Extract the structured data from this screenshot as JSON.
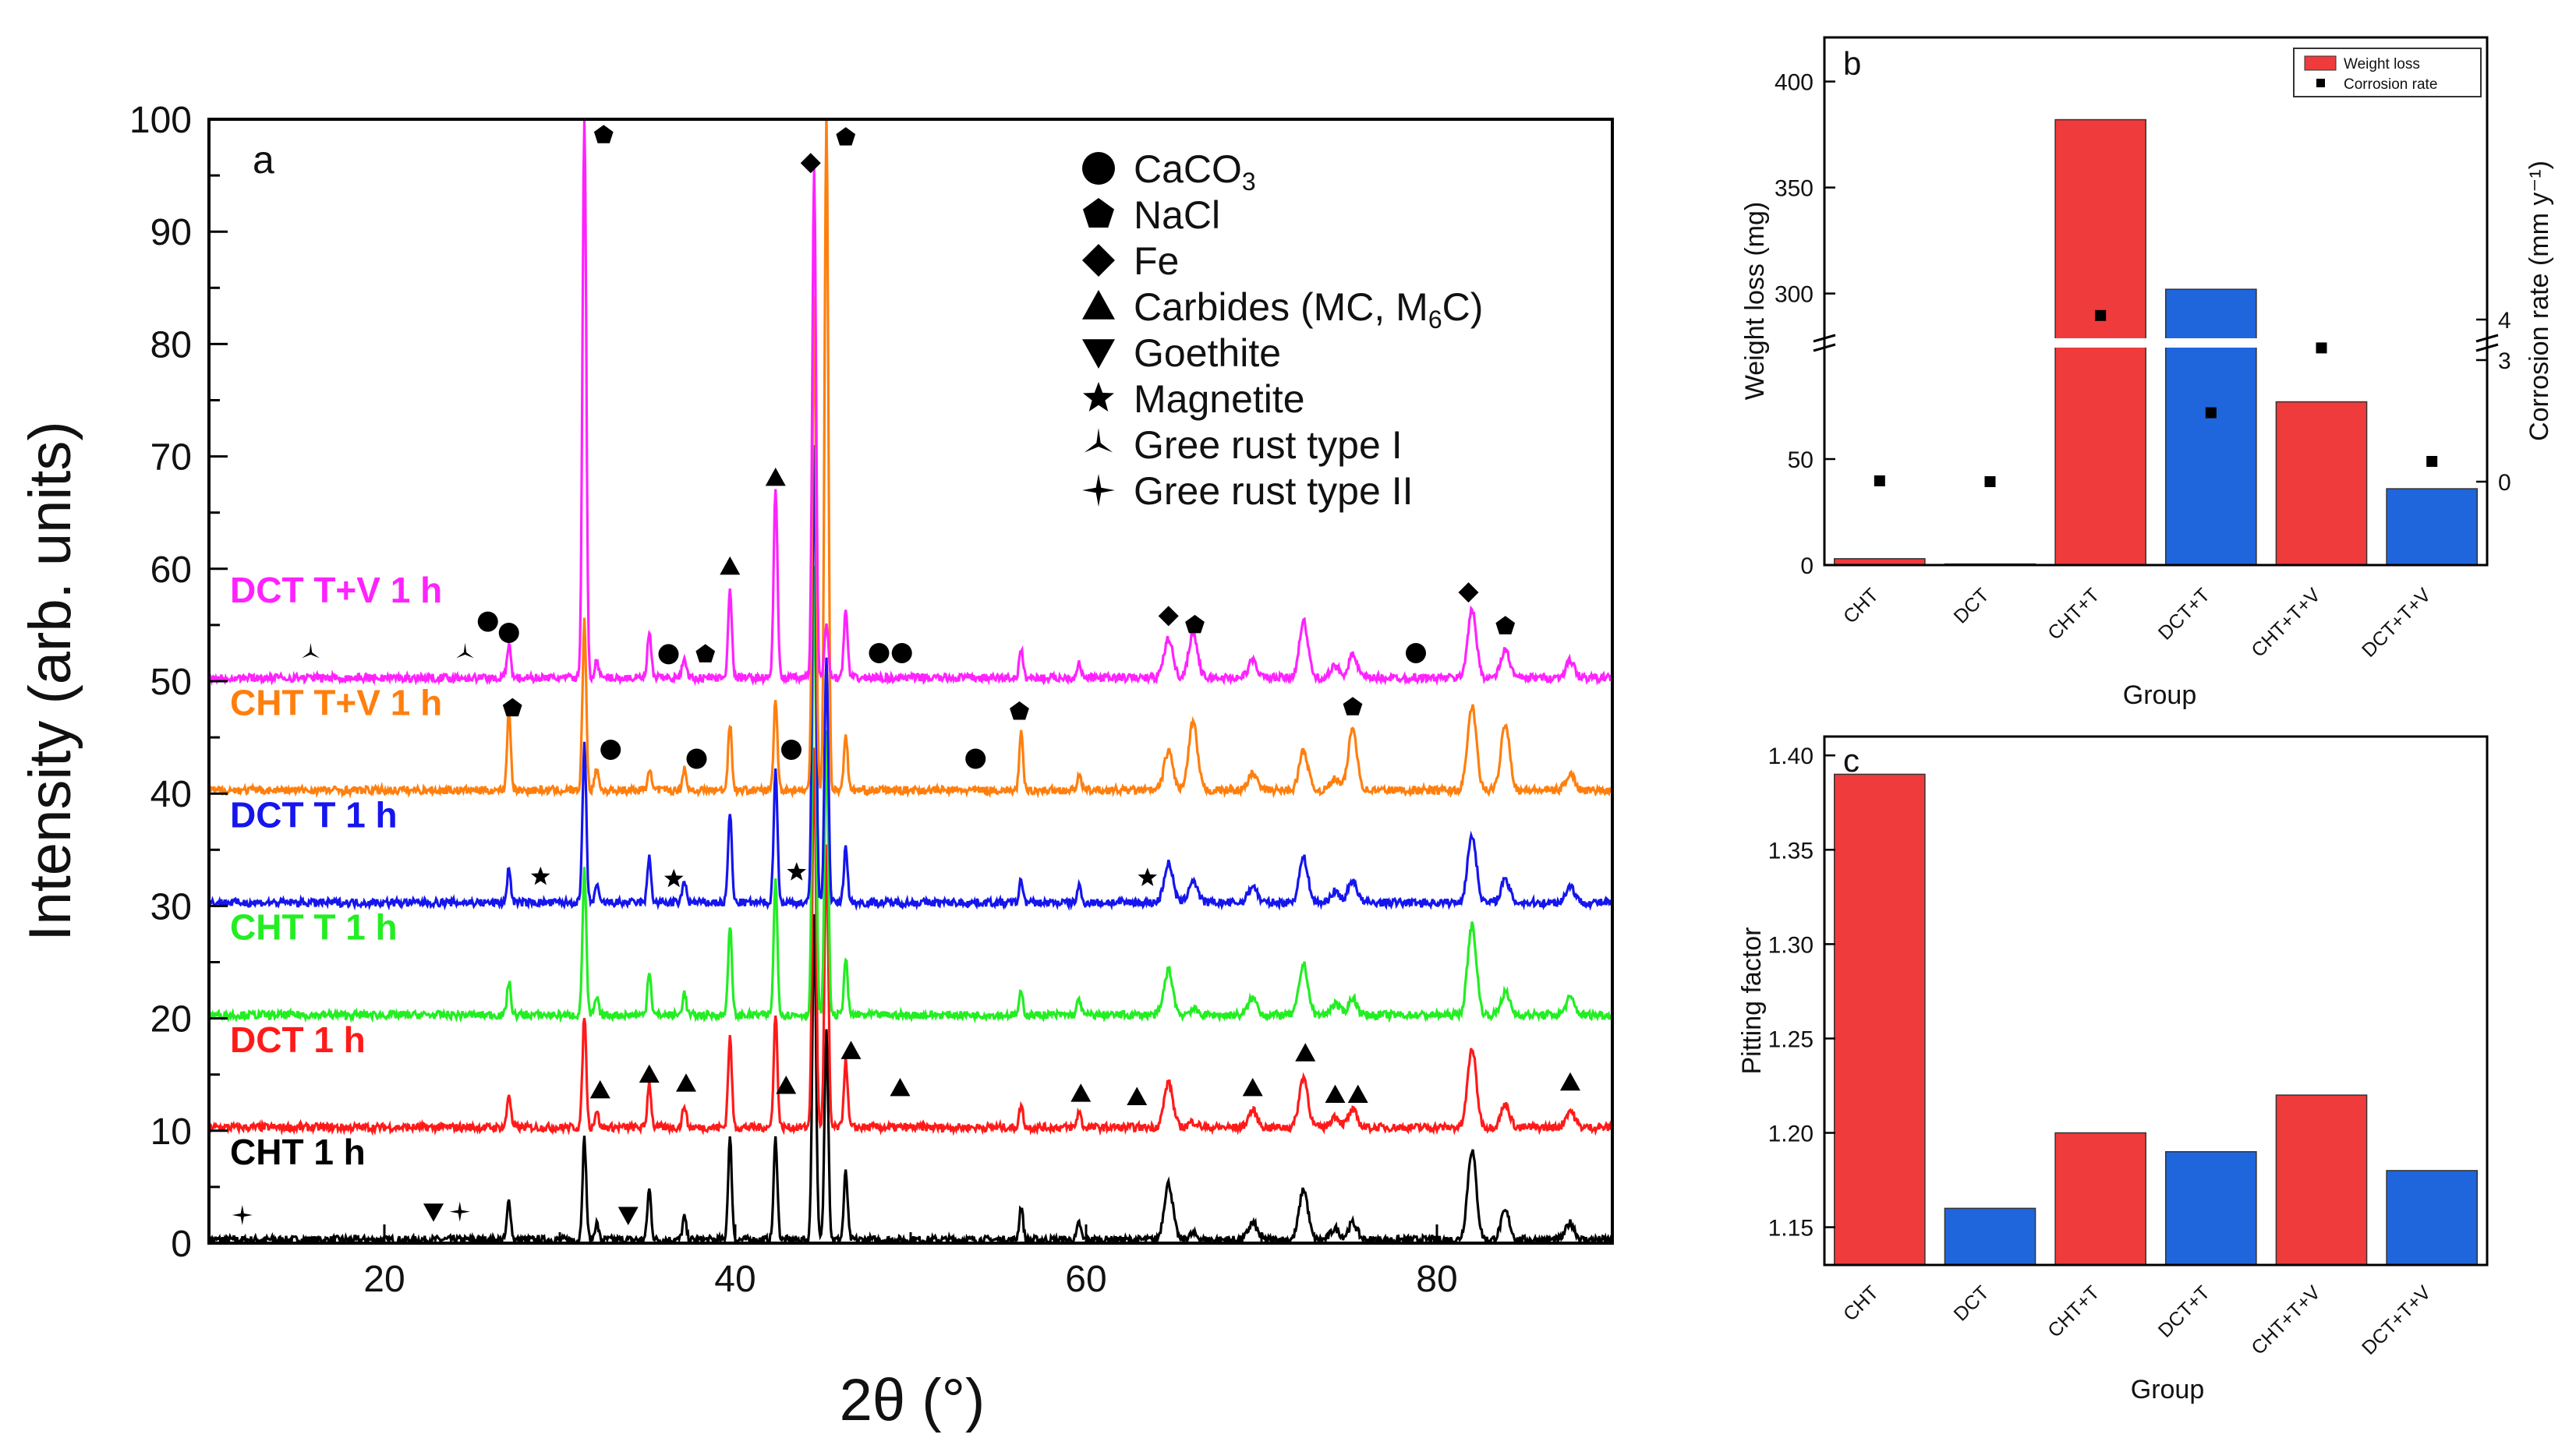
{
  "colors": {
    "CHT 1 h": "#000000",
    "DCT 1 h": "#ff1a1a",
    "CHT T 1 h": "#22ee22",
    "DCT T 1 h": "#1515ee",
    "CHT T+V 1 h": "#ff7f0e",
    "DCT T+V 1 h": "#ff22ff",
    "bar_cht": "#ef3b3b",
    "bar_dct": "#1f66dd"
  },
  "chart_data": [
    {
      "type": "line",
      "panel": "a",
      "xlabel": "2θ (°)",
      "ylabel": "Intensity (arb. units)",
      "xlim": [
        10,
        90
      ],
      "ylim": [
        0,
        100
      ],
      "xticks": [
        20,
        40,
        60,
        80
      ],
      "yticks": [
        0,
        10,
        20,
        30,
        40,
        50,
        60,
        70,
        80,
        90,
        100
      ],
      "series": [
        {
          "name": "CHT 1 h",
          "label": "CHT 1 h",
          "offset": 0,
          "label_y": 7
        },
        {
          "name": "DCT 1 h",
          "label": "DCT 1 h",
          "offset": 10,
          "label_y": 17
        },
        {
          "name": "CHT T 1 h",
          "label": "CHT T 1 h",
          "offset": 20,
          "label_y": 27
        },
        {
          "name": "DCT T 1 h",
          "label": "DCT T 1 h",
          "offset": 30,
          "label_y": 37
        },
        {
          "name": "CHT T+V 1 h",
          "label": "CHT T+V 1 h",
          "offset": 40,
          "label_y": 47
        },
        {
          "name": "DCT T+V 1 h",
          "label": "DCT T+V 1 h",
          "offset": 50,
          "label_y": 57
        }
      ],
      "peaks": [
        {
          "x": 27.1,
          "h": [
            3.5,
            3.0,
            3.0,
            3.0,
            7.0,
            3.0
          ]
        },
        {
          "x": 31.4,
          "h": [
            9.0,
            10.0,
            13.0,
            14.0,
            15.0,
            50.0
          ]
        },
        {
          "x": 32.1,
          "h": [
            1.5,
            1.5,
            1.5,
            1.5,
            2.0,
            1.5
          ]
        },
        {
          "x": 35.1,
          "h": [
            4.5,
            4.0,
            4.0,
            4.0,
            2.0,
            4.0
          ]
        },
        {
          "x": 37.1,
          "h": [
            2.0,
            2.0,
            2.0,
            2.0,
            2.0,
            2.0
          ]
        },
        {
          "x": 39.7,
          "h": [
            9.0,
            8.0,
            8.0,
            8.0,
            6.0,
            8.0
          ]
        },
        {
          "x": 42.3,
          "h": [
            9.0,
            10.0,
            12.0,
            12.0,
            8.0,
            17.0
          ]
        },
        {
          "x": 44.5,
          "h": [
            29.0,
            34.0,
            40.0,
            41.0,
            44.0,
            45.0
          ]
        },
        {
          "x": 45.2,
          "h": [
            19.0,
            25.0,
            25.0,
            22.0,
            60.0,
            5.0
          ]
        },
        {
          "x": 46.3,
          "h": [
            6.0,
            6.0,
            5.0,
            5.0,
            5.0,
            6.0
          ]
        },
        {
          "x": 56.3,
          "h": [
            3.0,
            2.0,
            2.0,
            2.0,
            5.0,
            2.5
          ]
        },
        {
          "x": 59.6,
          "h": [
            1.5,
            1.5,
            1.5,
            1.5,
            1.5,
            1.5
          ]
        },
        {
          "x": 64.7,
          "h": [
            5.0,
            4.0,
            4.0,
            3.5,
            3.5,
            3.5
          ]
        },
        {
          "x": 66.1,
          "h": [
            0.5,
            0.5,
            0.5,
            2.0,
            6.0,
            4.0
          ]
        },
        {
          "x": 69.5,
          "h": [
            1.5,
            1.5,
            1.5,
            1.5,
            1.5,
            1.5
          ]
        },
        {
          "x": 72.4,
          "h": [
            4.5,
            4.5,
            4.5,
            4.0,
            3.5,
            5.0
          ]
        },
        {
          "x": 74.2,
          "h": [
            1.0,
            1.0,
            1.0,
            1.0,
            1.0,
            1.0
          ]
        },
        {
          "x": 75.2,
          "h": [
            1.5,
            1.5,
            1.5,
            2.0,
            5.5,
            2.0
          ]
        },
        {
          "x": 82.0,
          "h": [
            8.0,
            7.0,
            8.0,
            6.0,
            7.5,
            6.0
          ]
        },
        {
          "x": 83.9,
          "h": [
            2.5,
            2.0,
            2.0,
            2.0,
            6.0,
            2.5
          ]
        },
        {
          "x": 87.6,
          "h": [
            1.5,
            1.5,
            1.5,
            1.5,
            1.5,
            1.5
          ]
        }
      ],
      "legend": [
        {
          "marker": "circle",
          "text": "CaCO",
          "sub": "3",
          "post": ""
        },
        {
          "marker": "pentagon",
          "text": "NaCl",
          "sub": "",
          "post": ""
        },
        {
          "marker": "diamond",
          "text": "Fe",
          "sub": "",
          "post": ""
        },
        {
          "marker": "triangle-up",
          "text": "Carbides (MC, M",
          "sub": "6",
          "post": "C)"
        },
        {
          "marker": "triangle-down",
          "text": "Goethite",
          "sub": "",
          "post": ""
        },
        {
          "marker": "star",
          "text": "Magnetite",
          "sub": "",
          "post": ""
        },
        {
          "marker": "tri-star",
          "text": "Gree rust type I",
          "sub": "",
          "post": ""
        },
        {
          "marker": "cross-star",
          "text": "Gree rust type II",
          "sub": "",
          "post": ""
        }
      ],
      "markers": [
        {
          "m": "cross-star",
          "x": 11.9,
          "y": 2.5
        },
        {
          "m": "triangle-down",
          "x": 22.8,
          "y": 2.8
        },
        {
          "m": "cross-star",
          "x": 24.3,
          "y": 2.8
        },
        {
          "m": "triangle-down",
          "x": 33.9,
          "y": 2.5
        },
        {
          "m": "triangle-up",
          "x": 32.3,
          "y": 13.6
        },
        {
          "m": "triangle-up",
          "x": 35.1,
          "y": 15.0
        },
        {
          "m": "triangle-up",
          "x": 37.2,
          "y": 14.2
        },
        {
          "m": "triangle-up",
          "x": 42.9,
          "y": 14.0
        },
        {
          "m": "triangle-up",
          "x": 46.6,
          "y": 17.1
        },
        {
          "m": "triangle-up",
          "x": 49.4,
          "y": 13.8
        },
        {
          "m": "triangle-up",
          "x": 59.7,
          "y": 13.3
        },
        {
          "m": "triangle-up",
          "x": 62.9,
          "y": 13.0
        },
        {
          "m": "triangle-up",
          "x": 69.5,
          "y": 13.8
        },
        {
          "m": "triangle-up",
          "x": 72.5,
          "y": 16.9
        },
        {
          "m": "triangle-up",
          "x": 74.2,
          "y": 13.2
        },
        {
          "m": "triangle-up",
          "x": 75.5,
          "y": 13.2
        },
        {
          "m": "triangle-up",
          "x": 87.6,
          "y": 14.3
        },
        {
          "m": "star",
          "x": 28.9,
          "y": 32.6
        },
        {
          "m": "star",
          "x": 36.5,
          "y": 32.4
        },
        {
          "m": "star",
          "x": 43.5,
          "y": 33.0
        },
        {
          "m": "star",
          "x": 63.5,
          "y": 32.5
        },
        {
          "m": "pentagon",
          "x": 27.3,
          "y": 47.6
        },
        {
          "m": "circle",
          "x": 32.9,
          "y": 43.9
        },
        {
          "m": "circle",
          "x": 37.8,
          "y": 43.1
        },
        {
          "m": "circle",
          "x": 43.2,
          "y": 43.9
        },
        {
          "m": "circle",
          "x": 53.7,
          "y": 43.1
        },
        {
          "m": "pentagon",
          "x": 56.2,
          "y": 47.3
        },
        {
          "m": "pentagon",
          "x": 75.2,
          "y": 47.7
        },
        {
          "m": "tri-star",
          "x": 15.8,
          "y": 52.5
        },
        {
          "m": "tri-star",
          "x": 24.6,
          "y": 52.5
        },
        {
          "m": "circle",
          "x": 25.9,
          "y": 55.3
        },
        {
          "m": "circle",
          "x": 27.1,
          "y": 54.3
        },
        {
          "m": "circle",
          "x": 36.2,
          "y": 52.4
        },
        {
          "m": "pentagon",
          "x": 38.3,
          "y": 52.4
        },
        {
          "m": "circle",
          "x": 48.2,
          "y": 52.5
        },
        {
          "m": "circle",
          "x": 49.5,
          "y": 52.5
        },
        {
          "m": "diamond",
          "x": 64.7,
          "y": 55.8
        },
        {
          "m": "pentagon",
          "x": 66.2,
          "y": 55.0
        },
        {
          "m": "circle",
          "x": 78.8,
          "y": 52.5
        },
        {
          "m": "diamond",
          "x": 81.8,
          "y": 57.9
        },
        {
          "m": "pentagon",
          "x": 83.9,
          "y": 54.9
        },
        {
          "m": "triangle-up",
          "x": 39.7,
          "y": 60.2
        },
        {
          "m": "triangle-up",
          "x": 42.3,
          "y": 68.1
        },
        {
          "m": "pentagon",
          "x": 32.5,
          "y": 98.6
        },
        {
          "m": "diamond",
          "x": 44.3,
          "y": 96.1
        },
        {
          "m": "pentagon",
          "x": 46.3,
          "y": 98.4
        }
      ]
    },
    {
      "type": "bar",
      "panel": "b",
      "xlabel": "Group",
      "ylabel": "Weight loss (mg)",
      "y2label": "Corrosion rate (mm y⁻¹)",
      "categories": [
        "CHT",
        "DCT",
        "CHT+T",
        "DCT+T",
        "CHT+T+V",
        "DCT+T+V"
      ],
      "series": [
        {
          "name": "Weight loss",
          "values": [
            3,
            0.5,
            382,
            302,
            77,
            36
          ]
        },
        {
          "name": "Corrosion rate",
          "axis": "right",
          "values": [
            0.02,
            0,
            4.1,
            1.7,
            3.3,
            0.5
          ]
        }
      ],
      "y_ticks": [
        0,
        50,
        300,
        350,
        400
      ],
      "y_break": [
        100,
        280
      ],
      "y2_ticks": [
        0,
        3,
        4
      ],
      "legend_position": "top-right"
    },
    {
      "type": "bar",
      "panel": "c",
      "xlabel": "Group",
      "ylabel": "Pitting factor",
      "categories": [
        "CHT",
        "DCT",
        "CHT+T",
        "DCT+T",
        "CHT+T+V",
        "DCT+T+V"
      ],
      "values": [
        1.39,
        1.16,
        1.2,
        1.19,
        1.22,
        1.18
      ],
      "ylim": [
        1.13,
        1.41
      ],
      "y_ticks": [
        1.15,
        1.2,
        1.25,
        1.3,
        1.35,
        1.4
      ]
    }
  ]
}
